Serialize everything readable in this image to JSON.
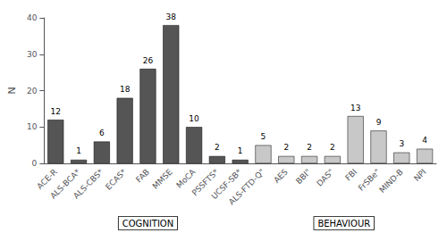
{
  "chart_data": {
    "type": "bar",
    "categories": [
      "ACE-R",
      "ALS-BCA*",
      "ALS-CBS*",
      "ECAS*",
      "FAB",
      "MMSE",
      "MoCA",
      "PSSFTS*",
      "UCSF-SB*",
      "ALS-FTD-Q\"",
      "AES",
      "BBI\"",
      "DAS\"",
      "FBI",
      "FrSBe\"",
      "MIND-B",
      "NPI"
    ],
    "values": [
      12,
      1,
      6,
      18,
      26,
      38,
      10,
      2,
      1,
      5,
      2,
      2,
      2,
      13,
      9,
      3,
      4
    ],
    "colors": [
      "#555555",
      "#555555",
      "#555555",
      "#555555",
      "#555555",
      "#555555",
      "#555555",
      "#555555",
      "#555555",
      "#c8c8c8",
      "#c8c8c8",
      "#c8c8c8",
      "#c8c8c8",
      "#c8c8c8",
      "#c8c8c8",
      "#c8c8c8",
      "#c8c8c8"
    ],
    "ylabel": "N",
    "ylim": [
      0,
      40
    ],
    "yticks": [
      0,
      10,
      20,
      30,
      40
    ],
    "grid": false,
    "data_labels": true,
    "annotations": [
      "COGNITION",
      "BEHAVIOUR"
    ]
  }
}
